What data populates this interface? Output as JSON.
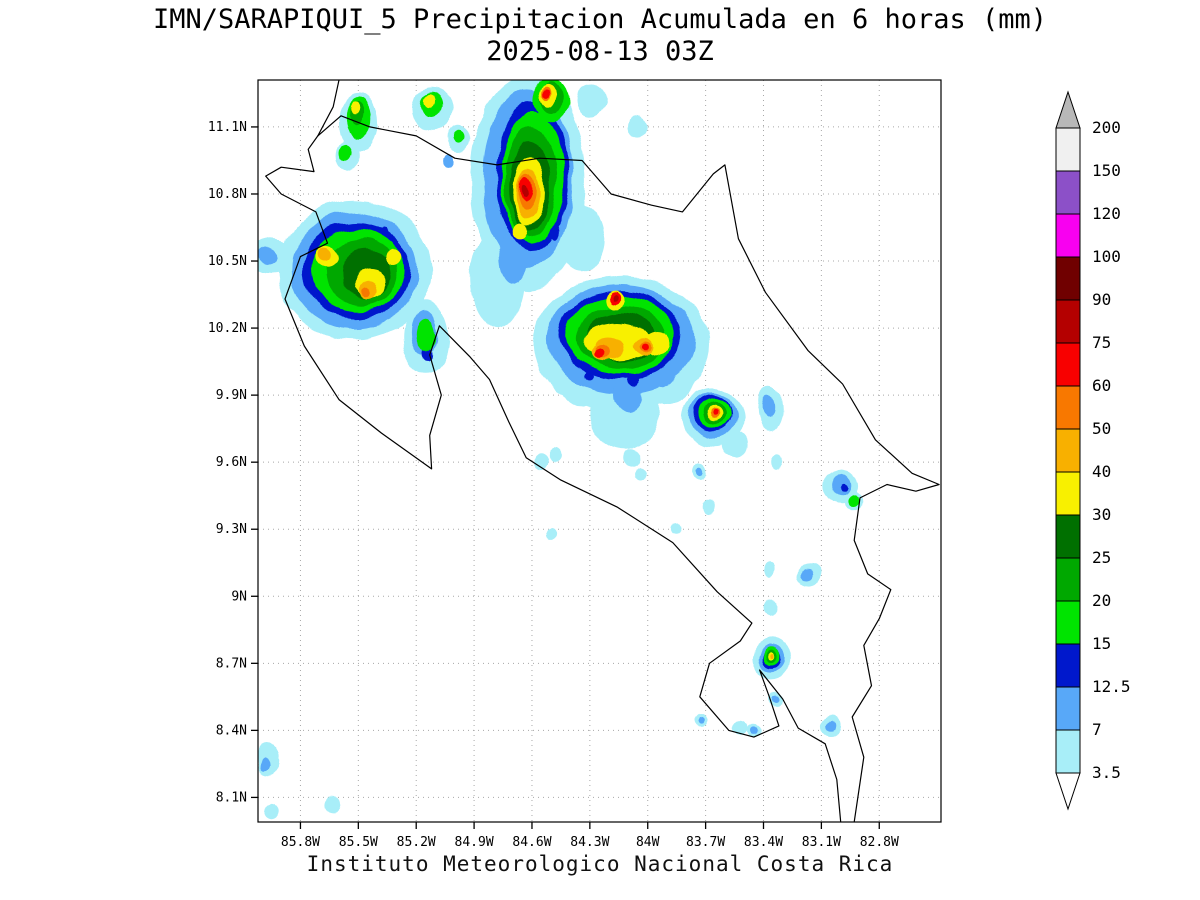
{
  "title": {
    "line1": "IMN/SARAPIQUI_5 Precipitacion Acumulada en 6 horas (mm)",
    "line2": "2025-08-13 03Z"
  },
  "footer": "Instituto Meteorologico Nacional Costa Rica",
  "map": {
    "extent": {
      "lon_min": -86.02,
      "lon_max": -82.48,
      "lat_min": 7.99,
      "lat_max": 11.31
    },
    "lat_ticks": [
      {
        "value": 11.1,
        "label": "11.1N"
      },
      {
        "value": 10.8,
        "label": "10.8N"
      },
      {
        "value": 10.5,
        "label": "10.5N"
      },
      {
        "value": 10.2,
        "label": "10.2N"
      },
      {
        "value": 9.9,
        "label": "9.9N"
      },
      {
        "value": 9.6,
        "label": "9.6N"
      },
      {
        "value": 9.3,
        "label": "9.3N"
      },
      {
        "value": 9.0,
        "label": "9N"
      },
      {
        "value": 8.7,
        "label": "8.7N"
      },
      {
        "value": 8.4,
        "label": "8.4N"
      },
      {
        "value": 8.1,
        "label": "8.1N"
      }
    ],
    "lon_ticks": [
      {
        "value": -85.8,
        "label": "85.8W"
      },
      {
        "value": -85.5,
        "label": "85.5W"
      },
      {
        "value": -85.2,
        "label": "85.2W"
      },
      {
        "value": -84.9,
        "label": "84.9W"
      },
      {
        "value": -84.6,
        "label": "84.6W"
      },
      {
        "value": -84.3,
        "label": "84.3W"
      },
      {
        "value": -84.0,
        "label": "84W"
      },
      {
        "value": -83.7,
        "label": "83.7W"
      },
      {
        "value": -83.4,
        "label": "83.4W"
      },
      {
        "value": -83.1,
        "label": "83.1W"
      },
      {
        "value": -82.8,
        "label": "82.8W"
      }
    ],
    "coastline": [
      [
        [
          -85.6,
          11.31
        ],
        [
          -85.63,
          11.19
        ],
        [
          -85.71,
          11.06
        ],
        [
          -85.59,
          11.15
        ],
        [
          -85.44,
          11.1
        ],
        [
          -85.2,
          11.06
        ],
        [
          -85.0,
          10.96
        ],
        [
          -84.78,
          10.93
        ],
        [
          -84.56,
          10.96
        ],
        [
          -84.34,
          10.95
        ],
        [
          -84.19,
          10.8
        ],
        [
          -83.98,
          10.75
        ],
        [
          -83.82,
          10.72
        ],
        [
          -83.66,
          10.89
        ],
        [
          -83.6,
          10.93
        ],
        [
          -83.53,
          10.6
        ],
        [
          -83.39,
          10.36
        ],
        [
          -83.17,
          10.1
        ],
        [
          -82.99,
          9.95
        ],
        [
          -82.82,
          9.7
        ],
        [
          -82.63,
          9.55
        ],
        [
          -82.49,
          9.5
        ],
        [
          -82.61,
          9.47
        ],
        [
          -82.76,
          9.5
        ],
        [
          -82.9,
          9.44
        ],
        [
          -82.93,
          9.25
        ],
        [
          -82.86,
          9.1
        ],
        [
          -82.74,
          9.03
        ],
        [
          -82.8,
          8.9
        ],
        [
          -82.88,
          8.78
        ],
        [
          -82.84,
          8.6
        ],
        [
          -82.94,
          8.46
        ],
        [
          -82.88,
          8.28
        ],
        [
          -82.93,
          7.99
        ]
      ],
      [
        [
          -83.0,
          7.99
        ],
        [
          -83.02,
          8.18
        ],
        [
          -83.08,
          8.34
        ],
        [
          -83.22,
          8.41
        ],
        [
          -83.3,
          8.54
        ],
        [
          -83.42,
          8.67
        ],
        [
          -83.37,
          8.55
        ],
        [
          -83.32,
          8.42
        ],
        [
          -83.45,
          8.37
        ],
        [
          -83.58,
          8.4
        ],
        [
          -83.73,
          8.55
        ],
        [
          -83.68,
          8.7
        ],
        [
          -83.52,
          8.8
        ],
        [
          -83.46,
          8.88
        ],
        [
          -83.64,
          9.02
        ],
        [
          -83.87,
          9.24
        ],
        [
          -84.16,
          9.4
        ],
        [
          -84.45,
          9.52
        ],
        [
          -84.63,
          9.62
        ],
        [
          -84.72,
          9.78
        ],
        [
          -84.82,
          9.97
        ],
        [
          -84.92,
          10.07
        ],
        [
          -85.08,
          10.21
        ],
        [
          -85.13,
          10.08
        ],
        [
          -85.07,
          9.9
        ],
        [
          -85.13,
          9.72
        ],
        [
          -85.12,
          9.57
        ],
        [
          -85.38,
          9.73
        ],
        [
          -85.6,
          9.88
        ],
        [
          -85.78,
          10.12
        ],
        [
          -85.88,
          10.33
        ],
        [
          -85.8,
          10.52
        ],
        [
          -85.66,
          10.58
        ],
        [
          -85.72,
          10.72
        ],
        [
          -85.9,
          10.8
        ],
        [
          -85.98,
          10.88
        ],
        [
          -85.9,
          10.92
        ],
        [
          -85.73,
          10.9
        ],
        [
          -85.76,
          11.0
        ],
        [
          -85.71,
          11.06
        ]
      ]
    ]
  },
  "levels": [
    "3.5",
    "7",
    "12.5",
    "15",
    "20",
    "25",
    "30",
    "40",
    "50",
    "60",
    "75",
    "90",
    "100",
    "120",
    "150"
  ],
  "palette": {
    "3.5": "#a8eef8",
    "7": "#58a8f8",
    "12.5": "#0018cc",
    "15": "#00e400",
    "20": "#00a800",
    "25": "#007000",
    "30": "#f8f000",
    "40": "#f8b000",
    "50": "#f87800",
    "60": "#f80000",
    "75": "#b40000",
    "90": "#700000",
    "100": "#f800f0",
    "120": "#8c50c8",
    "150": "#f0f0f0"
  },
  "colorbar": {
    "labels": [
      "200",
      "150",
      "120",
      "100",
      "90",
      "75",
      "60",
      "50",
      "40",
      "30",
      "25",
      "20",
      "15",
      "12.5",
      "7",
      "3.5"
    ],
    "top_arrow_color": "#b8b8b8",
    "bottom_arrow_color": "#ffffff"
  },
  "precip_cells": [
    [
      -84.62,
      10.85,
      0.3,
      0.48,
      "3.5"
    ],
    [
      -84.78,
      10.42,
      0.14,
      0.22,
      "3.5"
    ],
    [
      -84.34,
      10.6,
      0.12,
      0.15,
      "3.5"
    ],
    [
      -85.5,
      11.12,
      0.1,
      0.13,
      "3.5"
    ],
    [
      -85.55,
      10.97,
      0.06,
      0.07,
      "3.5"
    ],
    [
      -85.12,
      11.18,
      0.11,
      0.1,
      "3.5"
    ],
    [
      -84.98,
      11.05,
      0.06,
      0.06,
      "3.5"
    ],
    [
      -84.05,
      11.1,
      0.05,
      0.05,
      "3.5"
    ],
    [
      -84.3,
      11.22,
      0.08,
      0.07,
      "3.5"
    ],
    [
      -85.52,
      10.46,
      0.4,
      0.31,
      "3.5"
    ],
    [
      -85.95,
      10.52,
      0.12,
      0.08,
      "3.5"
    ],
    [
      -85.15,
      10.16,
      0.12,
      0.16,
      "3.5"
    ],
    [
      -84.14,
      10.13,
      0.46,
      0.3,
      "3.5"
    ],
    [
      -84.12,
      9.82,
      0.18,
      0.16,
      "3.5"
    ],
    [
      -83.9,
      9.98,
      0.14,
      0.12,
      "3.5"
    ],
    [
      -84.35,
      9.95,
      0.1,
      0.1,
      "3.5"
    ],
    [
      -84.08,
      9.62,
      0.05,
      0.04,
      "3.5"
    ],
    [
      -84.47,
      9.63,
      0.035,
      0.03,
      "3.5"
    ],
    [
      -83.66,
      9.8,
      0.16,
      0.13,
      "3.5"
    ],
    [
      -83.55,
      9.68,
      0.07,
      0.06,
      "3.5"
    ],
    [
      -83.37,
      9.84,
      0.07,
      0.1,
      "3.5"
    ],
    [
      -83.33,
      9.6,
      0.03,
      0.03,
      "3.5"
    ],
    [
      -83.0,
      9.49,
      0.09,
      0.08,
      "3.5"
    ],
    [
      -82.94,
      9.42,
      0.05,
      0.04,
      "3.5"
    ],
    [
      -83.16,
      9.1,
      0.06,
      0.05,
      "3.5"
    ],
    [
      -83.37,
      9.12,
      0.03,
      0.03,
      "3.5"
    ],
    [
      -83.36,
      8.95,
      0.04,
      0.035,
      "3.5"
    ],
    [
      -83.36,
      8.72,
      0.1,
      0.09,
      "3.5"
    ],
    [
      -83.05,
      8.42,
      0.05,
      0.045,
      "3.5"
    ],
    [
      -83.52,
      8.41,
      0.04,
      0.035,
      "3.5"
    ],
    [
      -83.45,
      8.4,
      0.035,
      0.03,
      "3.5"
    ],
    [
      -83.73,
      8.45,
      0.035,
      0.03,
      "3.5"
    ],
    [
      -83.34,
      8.54,
      0.04,
      0.035,
      "3.5"
    ],
    [
      -85.97,
      8.27,
      0.06,
      0.08,
      "3.5"
    ],
    [
      -85.95,
      8.04,
      0.04,
      0.04,
      "3.5"
    ],
    [
      -85.63,
      8.07,
      0.035,
      0.035,
      "3.5"
    ],
    [
      -84.55,
      9.6,
      0.04,
      0.04,
      "3.5"
    ],
    [
      -84.5,
      9.28,
      0.03,
      0.03,
      "3.5"
    ],
    [
      -83.73,
      9.56,
      0.04,
      0.04,
      "3.5"
    ],
    [
      -83.68,
      9.4,
      0.03,
      0.03,
      "3.5"
    ],
    [
      -84.03,
      9.55,
      0.03,
      0.03,
      "3.5"
    ],
    [
      -83.85,
      9.3,
      0.025,
      0.025,
      "3.5"
    ],
    [
      -84.62,
      10.87,
      0.235,
      0.4,
      "7"
    ],
    [
      -84.7,
      10.52,
      0.07,
      0.12,
      "7"
    ],
    [
      -85.52,
      10.46,
      0.33,
      0.26,
      "7"
    ],
    [
      -85.97,
      10.52,
      0.05,
      0.04,
      "7"
    ],
    [
      -85.16,
      10.18,
      0.07,
      0.1,
      "7"
    ],
    [
      -84.14,
      10.15,
      0.385,
      0.245,
      "7"
    ],
    [
      -84.1,
      9.9,
      0.08,
      0.08,
      "7"
    ],
    [
      -83.92,
      10.0,
      0.06,
      0.06,
      "7"
    ],
    [
      -83.66,
      9.81,
      0.125,
      0.1,
      "7"
    ],
    [
      -83.38,
      9.85,
      0.035,
      0.05,
      "7"
    ],
    [
      -83.0,
      9.5,
      0.05,
      0.05,
      "7"
    ],
    [
      -83.17,
      9.1,
      0.03,
      0.025,
      "7"
    ],
    [
      -83.36,
      8.72,
      0.07,
      0.06,
      "7"
    ],
    [
      -83.05,
      8.42,
      0.025,
      0.022,
      "7"
    ],
    [
      -83.73,
      9.56,
      0.02,
      0.02,
      "7"
    ],
    [
      -85.99,
      8.24,
      0.025,
      0.03,
      "7"
    ],
    [
      -85.02,
      10.95,
      0.025,
      0.03,
      "7"
    ],
    [
      -83.73,
      8.45,
      0.018,
      0.015,
      "7"
    ],
    [
      -83.45,
      8.4,
      0.02,
      0.018,
      "7"
    ],
    [
      -83.34,
      8.54,
      0.02,
      0.018,
      "7"
    ],
    [
      -84.6,
      10.88,
      0.19,
      0.33,
      "12.5"
    ],
    [
      -84.48,
      10.63,
      0.025,
      0.035,
      "12.5"
    ],
    [
      -84.75,
      11.0,
      0.022,
      0.03,
      "12.5"
    ],
    [
      -85.51,
      10.46,
      0.28,
      0.215,
      "12.5"
    ],
    [
      -85.62,
      10.37,
      0.03,
      0.035,
      "12.5"
    ],
    [
      -85.36,
      10.62,
      0.025,
      0.03,
      "12.5"
    ],
    [
      -85.14,
      10.09,
      0.025,
      0.03,
      "12.5"
    ],
    [
      -84.14,
      10.17,
      0.32,
      0.2,
      "12.5"
    ],
    [
      -84.07,
      9.97,
      0.03,
      0.03,
      "12.5"
    ],
    [
      -83.93,
      10.04,
      0.022,
      0.022,
      "12.5"
    ],
    [
      -84.3,
      9.99,
      0.022,
      0.02,
      "12.5"
    ],
    [
      -83.66,
      9.82,
      0.1,
      0.08,
      "12.5"
    ],
    [
      -82.99,
      9.49,
      0.02,
      0.02,
      "12.5"
    ],
    [
      -83.36,
      8.72,
      0.05,
      0.045,
      "12.5"
    ],
    [
      -84.6,
      10.87,
      0.165,
      0.29,
      "15"
    ],
    [
      -84.5,
      11.22,
      0.09,
      0.1,
      "15"
    ],
    [
      -85.5,
      11.14,
      0.065,
      0.09,
      "15"
    ],
    [
      -85.56,
      10.98,
      0.035,
      0.04,
      "15"
    ],
    [
      -85.12,
      11.2,
      0.06,
      0.06,
      "15"
    ],
    [
      -84.98,
      11.06,
      0.03,
      0.03,
      "15"
    ],
    [
      -85.5,
      10.46,
      0.24,
      0.185,
      "15"
    ],
    [
      -85.15,
      10.17,
      0.05,
      0.07,
      "15"
    ],
    [
      -84.14,
      10.17,
      0.285,
      0.175,
      "15"
    ],
    [
      -83.65,
      9.82,
      0.085,
      0.065,
      "15"
    ],
    [
      -82.94,
      9.42,
      0.03,
      0.025,
      "15"
    ],
    [
      -83.36,
      8.73,
      0.045,
      0.04,
      "15"
    ],
    [
      -84.61,
      10.85,
      0.135,
      0.245,
      "20"
    ],
    [
      -84.5,
      11.23,
      0.06,
      0.07,
      "20"
    ],
    [
      -85.51,
      11.16,
      0.04,
      0.05,
      "20"
    ],
    [
      -85.48,
      10.45,
      0.185,
      0.15,
      "20"
    ],
    [
      -84.14,
      10.16,
      0.23,
      0.14,
      "20"
    ],
    [
      -83.65,
      9.82,
      0.06,
      0.05,
      "20"
    ],
    [
      -83.36,
      8.73,
      0.03,
      0.027,
      "20"
    ],
    [
      -84.61,
      10.83,
      0.105,
      0.2,
      "25"
    ],
    [
      -85.46,
      10.44,
      0.13,
      0.11,
      "25"
    ],
    [
      -84.14,
      10.16,
      0.175,
      0.11,
      "25"
    ],
    [
      -84.615,
      10.81,
      0.082,
      0.155,
      "30"
    ],
    [
      -84.66,
      10.63,
      0.04,
      0.04,
      "30"
    ],
    [
      -84.52,
      11.24,
      0.04,
      0.05,
      "30"
    ],
    [
      -85.52,
      11.18,
      0.025,
      0.03,
      "30"
    ],
    [
      -85.13,
      11.22,
      0.03,
      0.03,
      "30"
    ],
    [
      -85.44,
      10.4,
      0.085,
      0.065,
      "30"
    ],
    [
      -85.66,
      10.52,
      0.06,
      0.05,
      "30"
    ],
    [
      -85.32,
      10.52,
      0.045,
      0.04,
      "30"
    ],
    [
      -84.16,
      10.14,
      0.17,
      0.085,
      "30"
    ],
    [
      -83.95,
      10.13,
      0.07,
      0.05,
      "30"
    ],
    [
      -84.17,
      10.33,
      0.05,
      0.04,
      "30"
    ],
    [
      -83.65,
      9.82,
      0.042,
      0.035,
      "30"
    ],
    [
      -83.36,
      8.73,
      0.018,
      0.016,
      "30"
    ],
    [
      -84.62,
      10.8,
      0.062,
      0.115,
      "40"
    ],
    [
      -85.45,
      10.37,
      0.05,
      0.04,
      "40"
    ],
    [
      -85.67,
      10.53,
      0.035,
      0.03,
      "40"
    ],
    [
      -84.2,
      10.11,
      0.08,
      0.05,
      "40"
    ],
    [
      -84.24,
      10.09,
      0.06,
      0.04,
      "40"
    ],
    [
      -84.03,
      10.12,
      0.05,
      0.035,
      "40"
    ],
    [
      -83.355,
      8.73,
      0.01,
      0.009,
      "40"
    ],
    [
      -84.625,
      10.81,
      0.047,
      0.085,
      "50"
    ],
    [
      -85.46,
      10.36,
      0.025,
      0.02,
      "50"
    ],
    [
      -84.24,
      10.09,
      0.045,
      0.03,
      "50"
    ],
    [
      -84.02,
      10.12,
      0.03,
      0.02,
      "50"
    ],
    [
      -83.65,
      9.82,
      0.026,
      0.022,
      "50"
    ],
    [
      -84.53,
      11.25,
      0.02,
      0.03,
      "50"
    ],
    [
      -84.63,
      10.82,
      0.032,
      0.058,
      "60"
    ],
    [
      -84.26,
      10.08,
      0.028,
      0.02,
      "60"
    ],
    [
      -84.02,
      10.12,
      0.018,
      0.013,
      "60"
    ],
    [
      -84.17,
      10.34,
      0.03,
      0.025,
      "60"
    ],
    [
      -83.648,
      9.823,
      0.015,
      0.013,
      "60"
    ],
    [
      -84.53,
      11.25,
      0.015,
      0.02,
      "60"
    ],
    [
      -84.635,
      10.81,
      0.016,
      0.028,
      "75"
    ],
    [
      -84.17,
      10.34,
      0.015,
      0.012,
      "75"
    ]
  ]
}
